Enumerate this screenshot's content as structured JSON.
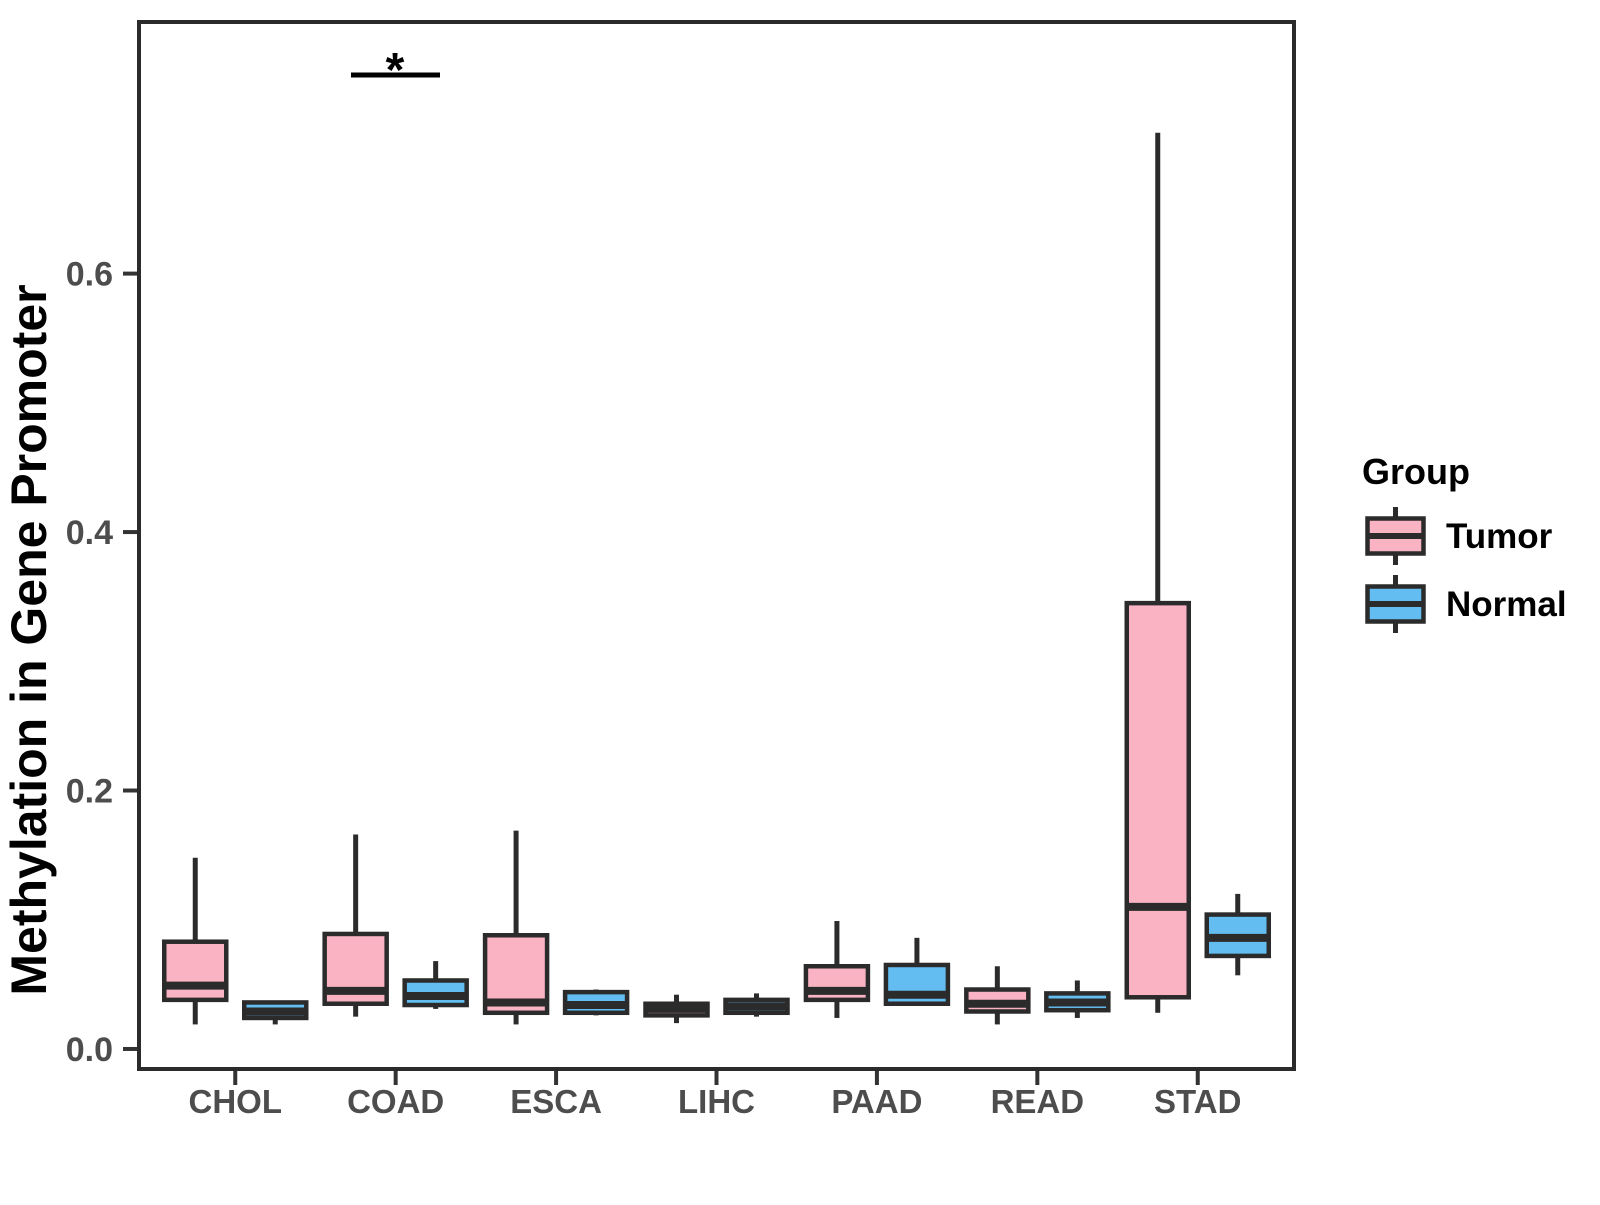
{
  "chart_data": {
    "type": "boxplot",
    "title": "",
    "ylabel": "Methylation in Gene Promoter",
    "xlabel": "",
    "ylim": [
      -0.0155,
      0.7947
    ],
    "yticks": [
      0.0,
      0.2,
      0.4,
      0.6
    ],
    "categories": [
      "CHOL",
      "COAD",
      "ESCA",
      "LIHC",
      "PAAD",
      "READ",
      "STAD"
    ],
    "grid": "off",
    "legend": {
      "title": "Group",
      "position": "right",
      "entries": [
        {
          "label": "Tumor",
          "color": "#F9B3C3"
        },
        {
          "label": "Normal",
          "color": "#63BDF1"
        }
      ]
    },
    "significance": {
      "label": "*",
      "category": "COAD",
      "y_value": 0.754
    },
    "series": [
      {
        "name": "Tumor",
        "color": "#F9B3C3",
        "boxes": [
          {
            "category": "CHOL",
            "min": 0.019,
            "q1": 0.038,
            "median": 0.049,
            "q3": 0.083,
            "max": 0.148
          },
          {
            "category": "COAD",
            "min": 0.025,
            "q1": 0.035,
            "median": 0.045,
            "q3": 0.089,
            "max": 0.166
          },
          {
            "category": "ESCA",
            "min": 0.019,
            "q1": 0.028,
            "median": 0.036,
            "q3": 0.088,
            "max": 0.169
          },
          {
            "category": "LIHC",
            "min": 0.02,
            "q1": 0.026,
            "median": 0.031,
            "q3": 0.035,
            "max": 0.042
          },
          {
            "category": "PAAD",
            "min": 0.024,
            "q1": 0.038,
            "median": 0.045,
            "q3": 0.064,
            "max": 0.099
          },
          {
            "category": "READ",
            "min": 0.019,
            "q1": 0.029,
            "median": 0.035,
            "q3": 0.046,
            "max": 0.064
          },
          {
            "category": "STAD",
            "min": 0.028,
            "q1": 0.04,
            "median": 0.11,
            "q3": 0.345,
            "max": 0.709
          }
        ]
      },
      {
        "name": "Normal",
        "color": "#63BDF1",
        "boxes": [
          {
            "category": "CHOL",
            "min": 0.019,
            "q1": 0.024,
            "median": 0.029,
            "q3": 0.036,
            "max": 0.036
          },
          {
            "category": "COAD",
            "min": 0.031,
            "q1": 0.034,
            "median": 0.041,
            "q3": 0.053,
            "max": 0.068
          },
          {
            "category": "ESCA",
            "min": 0.026,
            "q1": 0.028,
            "median": 0.034,
            "q3": 0.044,
            "max": 0.046
          },
          {
            "category": "LIHC",
            "min": 0.025,
            "q1": 0.028,
            "median": 0.033,
            "q3": 0.038,
            "max": 0.043
          },
          {
            "category": "PAAD",
            "min": 0.034,
            "q1": 0.035,
            "median": 0.042,
            "q3": 0.065,
            "max": 0.086
          },
          {
            "category": "READ",
            "min": 0.024,
            "q1": 0.03,
            "median": 0.036,
            "q3": 0.043,
            "max": 0.053
          },
          {
            "category": "STAD",
            "min": 0.057,
            "q1": 0.072,
            "median": 0.086,
            "q3": 0.104,
            "max": 0.12
          }
        ]
      }
    ],
    "colors": {
      "box_stroke": "#2B2B2B",
      "panel_border": "#2B2B2B",
      "axis_text": "#4D4D4D",
      "tick_mark": "#333333"
    }
  }
}
